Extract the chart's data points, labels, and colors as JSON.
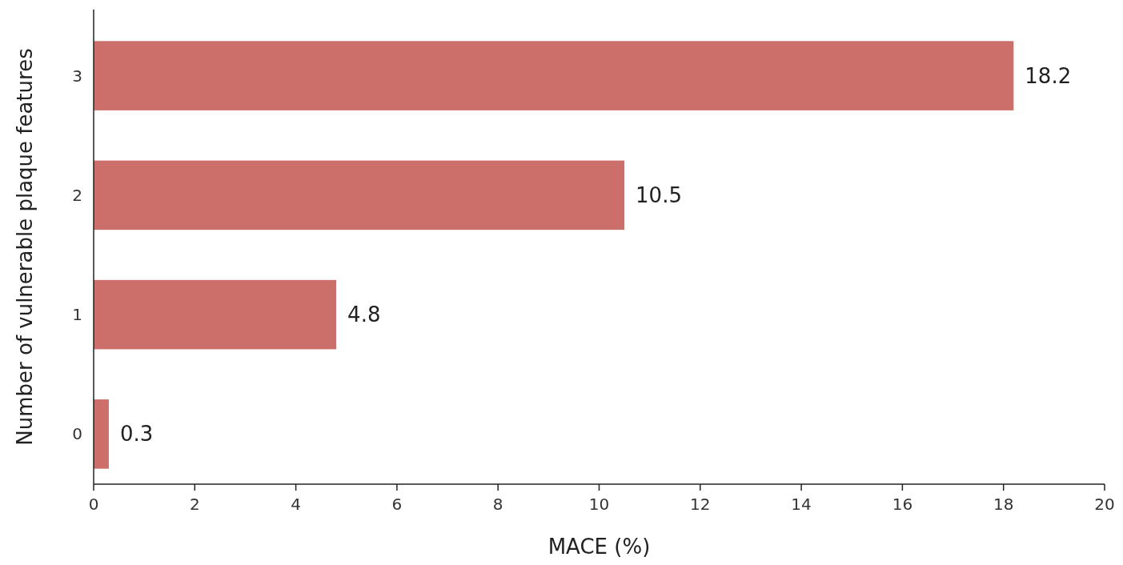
{
  "chart_data": {
    "type": "bar",
    "orientation": "horizontal",
    "xlabel": "MACE (%)",
    "ylabel": "Number of vulnerable plaque features",
    "categories": [
      "3",
      "2",
      "1",
      "0"
    ],
    "values": [
      18.2,
      10.5,
      4.8,
      0.3
    ],
    "color": "#cc6e6a",
    "xlim": [
      0,
      20
    ],
    "xticks": [
      0,
      2,
      4,
      6,
      8,
      10,
      12,
      14,
      16,
      18,
      20
    ],
    "data_labels": true,
    "grid": false
  }
}
